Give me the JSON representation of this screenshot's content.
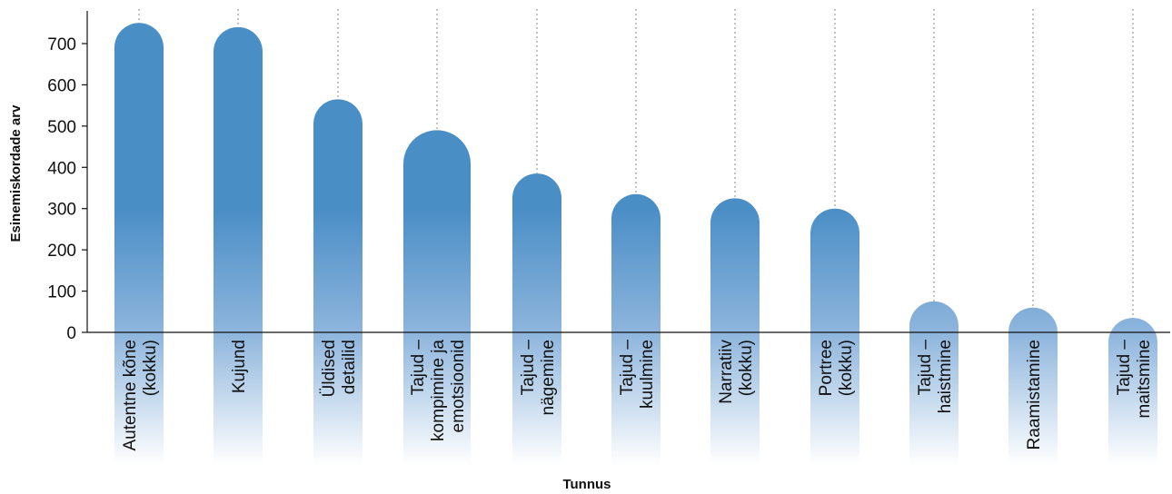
{
  "chart_data": {
    "type": "bar",
    "title": "",
    "xlabel": "Tunnus",
    "ylabel": "Esinemiskordade arv",
    "ylim": [
      0,
      770
    ],
    "yticks": [
      0,
      100,
      200,
      300,
      400,
      500,
      600,
      700
    ],
    "grid": "vertical dotted lines per category",
    "categories": [
      [
        "Autentne kõne",
        "(kokku)"
      ],
      [
        "Kujund"
      ],
      [
        "Üldised",
        "detailid"
      ],
      [
        "Tajud –",
        "kompimine ja",
        "emotsioonid"
      ],
      [
        "Tajud –",
        "nägemine"
      ],
      [
        "Tajud –",
        "kuulmine"
      ],
      [
        "Narratiiv",
        "(kokku)"
      ],
      [
        "Portree",
        "(kokku)"
      ],
      [
        "Tajud –",
        "haistmine"
      ],
      [
        "Raamistamine"
      ],
      [
        "Tajud –",
        "maitsmine"
      ]
    ],
    "values": [
      750,
      740,
      565,
      490,
      385,
      335,
      325,
      300,
      75,
      60,
      35
    ],
    "bar_color": "#4a8ec6"
  }
}
